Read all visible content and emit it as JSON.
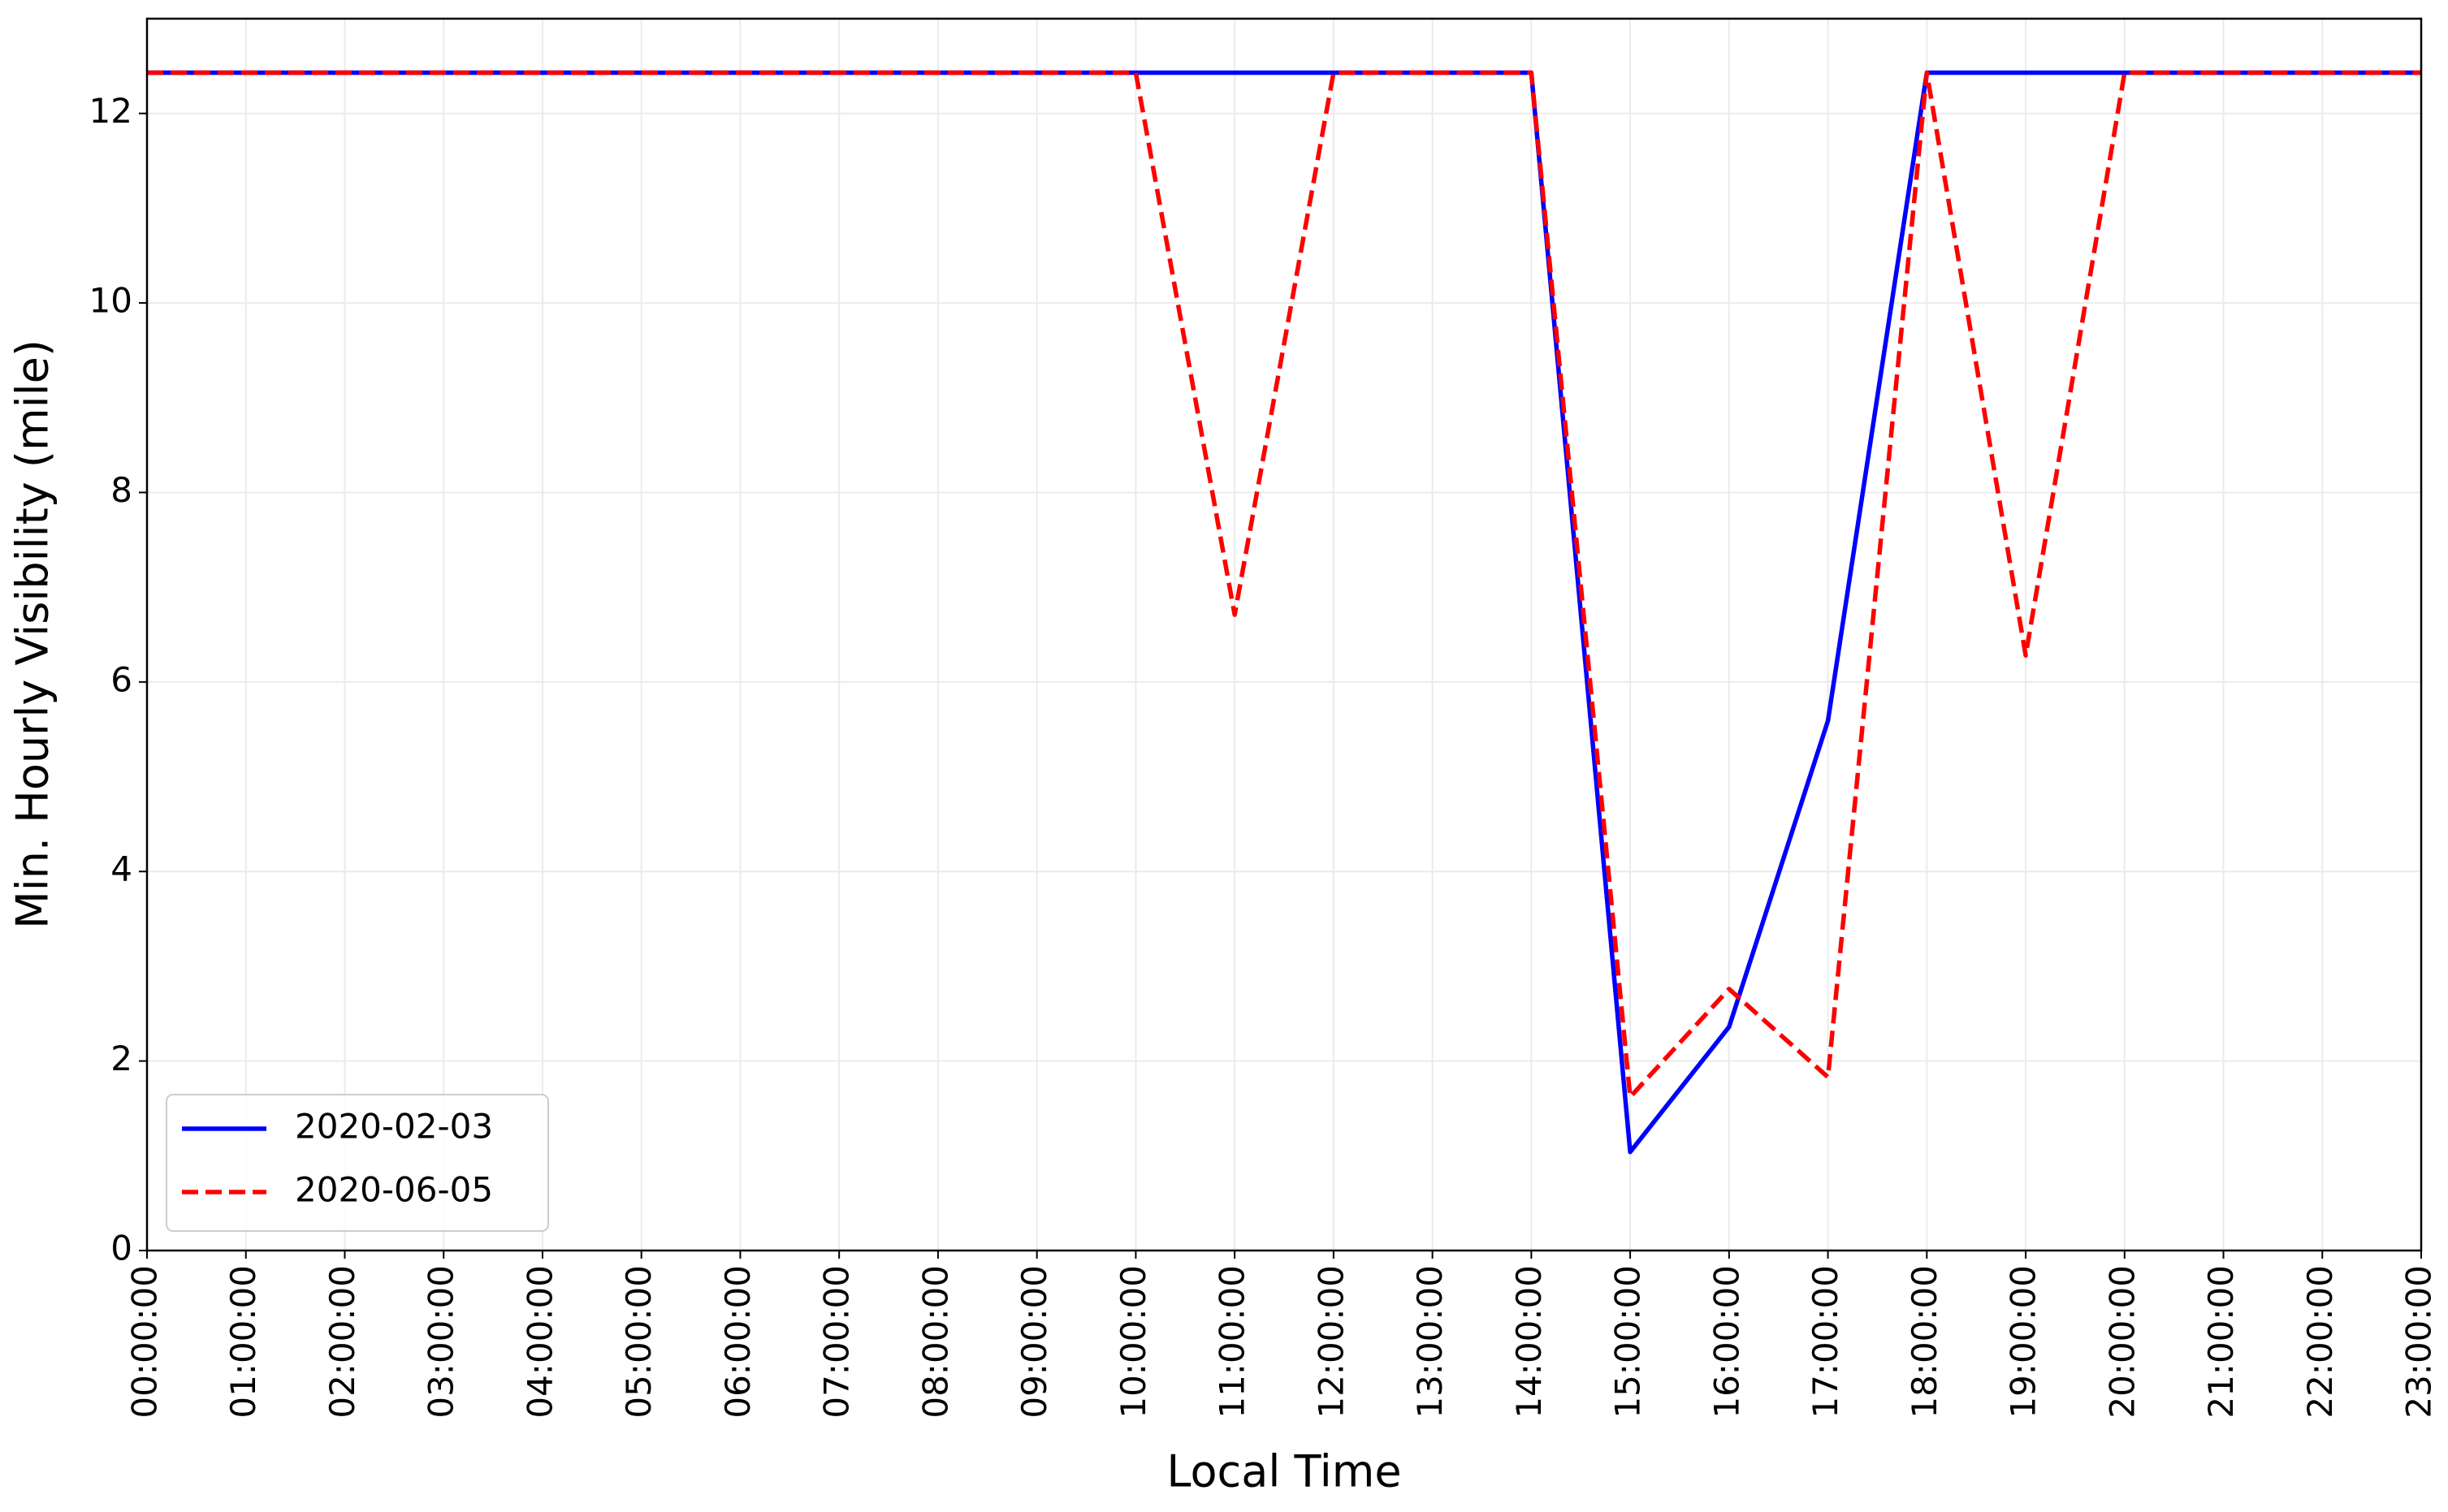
{
  "chart_data": {
    "type": "line",
    "x_label": "Local Time",
    "y_label": "Min. Hourly Visibility (mile)",
    "categories": [
      "00:00:00",
      "01:00:00",
      "02:00:00",
      "03:00:00",
      "04:00:00",
      "05:00:00",
      "06:00:00",
      "07:00:00",
      "08:00:00",
      "09:00:00",
      "10:00:00",
      "11:00:00",
      "12:00:00",
      "13:00:00",
      "14:00:00",
      "15:00:00",
      "16:00:00",
      "17:00:00",
      "18:00:00",
      "19:00:00",
      "20:00:00",
      "21:00:00",
      "22:00:00",
      "23:00:00"
    ],
    "series": [
      {
        "name": "2020-02-03",
        "color": "#0000ff",
        "dash": false,
        "values": [
          12.43,
          12.43,
          12.43,
          12.43,
          12.43,
          12.43,
          12.43,
          12.43,
          12.43,
          12.43,
          12.43,
          12.43,
          12.43,
          12.43,
          12.43,
          1.04,
          2.36,
          5.59,
          12.43,
          12.43,
          12.43,
          12.43,
          12.43,
          12.43
        ]
      },
      {
        "name": "2020-06-05",
        "color": "#ff0000",
        "dash": true,
        "values": [
          12.43,
          12.43,
          12.43,
          12.43,
          12.43,
          12.43,
          12.43,
          12.43,
          12.43,
          12.43,
          12.43,
          6.71,
          12.43,
          12.43,
          12.43,
          1.62,
          2.76,
          1.83,
          12.43,
          6.28,
          12.43,
          12.43,
          12.43,
          12.43
        ]
      }
    ],
    "ylim": [
      0,
      13
    ],
    "yticks": [
      0,
      2,
      4,
      6,
      8,
      10,
      12
    ],
    "grid": true,
    "legend": "lower left"
  }
}
